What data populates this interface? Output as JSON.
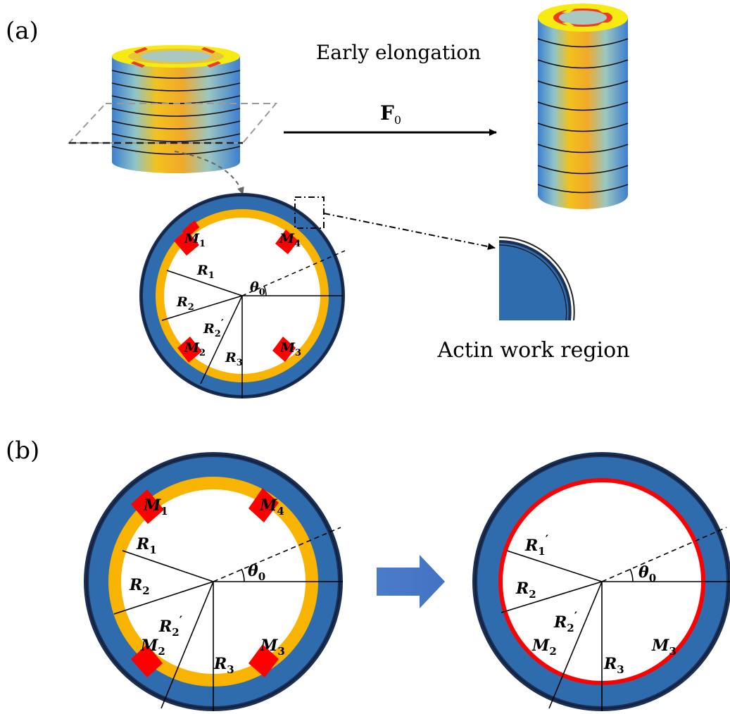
{
  "panel_a": {
    "tag": "(a)",
    "title": "Early elongation",
    "force": {
      "symbol": "F",
      "sub": "0"
    },
    "inset_caption": "Actin work region",
    "cross_section": {
      "labels": {
        "m1": {
          "base": "M",
          "sub": "1"
        },
        "m2": {
          "base": "M",
          "sub": "2"
        },
        "m3": {
          "base": "M",
          "sub": "3"
        },
        "m4": {
          "base": "M",
          "sub": "4"
        },
        "r1": {
          "base": "R",
          "sub": "1"
        },
        "r2": {
          "base": "R",
          "sub": "2"
        },
        "r2p": {
          "base": "R",
          "sub": "2",
          "prime": "′"
        },
        "r3": {
          "base": "R",
          "sub": "3"
        },
        "theta": {
          "base": "θ",
          "sub": "0"
        }
      }
    }
  },
  "panel_b": {
    "tag": "(b)",
    "left": {
      "labels": {
        "m1": {
          "base": "M",
          "sub": "1"
        },
        "m2": {
          "base": "M",
          "sub": "2"
        },
        "m3": {
          "base": "M",
          "sub": "3"
        },
        "m4": {
          "base": "M",
          "sub": "4"
        },
        "r1": {
          "base": "R",
          "sub": "1"
        },
        "r2": {
          "base": "R",
          "sub": "2"
        },
        "r2p": {
          "base": "R",
          "sub": "2",
          "prime": "′"
        },
        "r3": {
          "base": "R",
          "sub": "3"
        },
        "theta": {
          "base": "θ",
          "sub": "0"
        }
      }
    },
    "right": {
      "labels": {
        "r1p": {
          "base": "R",
          "sub": "1",
          "prime": "′"
        },
        "r2": {
          "base": "R",
          "sub": "2"
        },
        "r2p": {
          "base": "R",
          "sub": "2",
          "prime": "′"
        },
        "r3": {
          "base": "R",
          "sub": "3"
        },
        "m2": {
          "base": "M",
          "sub": "2"
        },
        "m3": {
          "base": "M",
          "sub": "3"
        },
        "theta": {
          "base": "θ",
          "sub": "0"
        }
      }
    }
  },
  "colors": {
    "blue": "#2f6fb2",
    "dark_blue": "#1b2f55",
    "orange": "#f8b400",
    "red": "#ff0000",
    "yellow": "#ffef00",
    "arrow_blue": "#4a7cc9"
  }
}
